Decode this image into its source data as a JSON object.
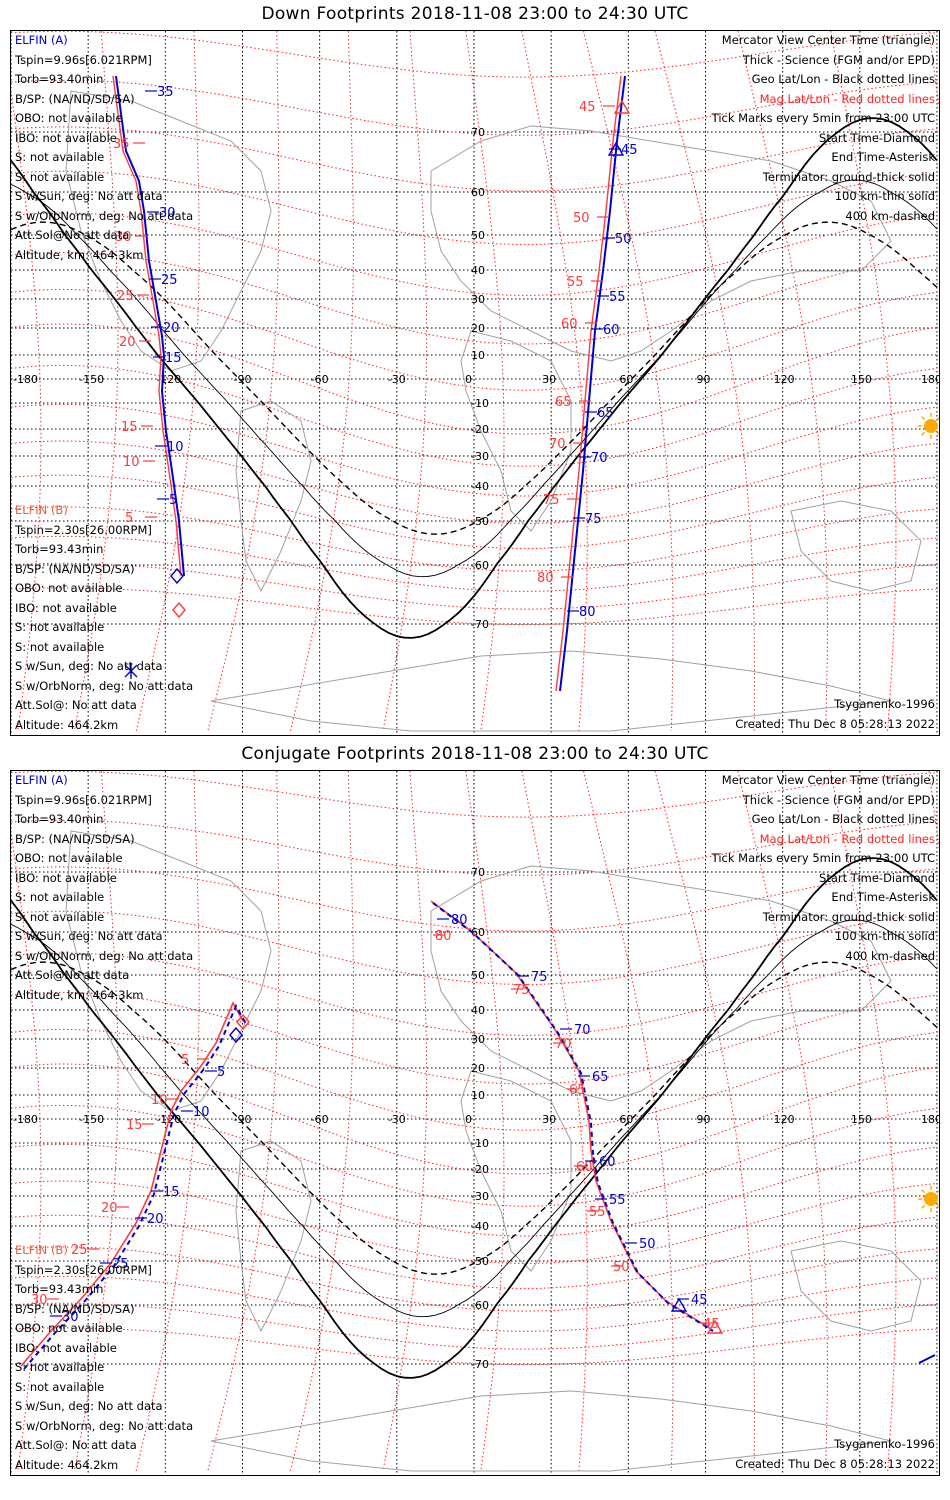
{
  "panels": [
    {
      "id": "down",
      "title": "Down Footprints 2018-11-08 23:00 to 24:30 UTC",
      "elfin_a": {
        "name": "ELFIN (A)",
        "lines": [
          "Tspin=9.96s[6.021RPM]",
          "Torb=93.40min",
          "B/SP: (NA/ND/SD/SA)",
          "OBO: not available",
          "IBO: not available",
          "S: not available",
          "S: not available",
          "S w/Sun, deg: No att data",
          "S w/OrbNorm, deg: No att data",
          "Att.Sol@No att data",
          "Altitude, km: 464.3km"
        ]
      },
      "elfin_b": {
        "name": "ELFIN (B)",
        "lines": [
          "Tspin=2.30s[26.00RPM]",
          "Torb=93.43min",
          "B/SP: (NA/ND/SD/SA)",
          "OBO: not available",
          "IBO: not available",
          "S: not available",
          "S: not available",
          "S w/Sun, deg: No att data",
          "S w/OrbNorm, deg: No att data",
          "Att.Sol@: No att data",
          "Altitude: 464.2km"
        ]
      },
      "legend": [
        "Mercator View Center Time (triangle)",
        "Thick - Science (FGM and/or EPD)",
        "Geo Lat/Lon - Black dotted lines",
        "Mag Lat/Lon - Red dotted lines",
        "Tick Marks every 5min from 23:00 UTC",
        "Start Time-Diamond",
        "End Time-Asterisk",
        "Terminator: ground-thick solid",
        "100 km-thin solid",
        "400 km-dashed"
      ],
      "model": "Tsyganenko-1996",
      "created": "Created: Thu Dec  8 05:28:13 2022",
      "lon_labels": [
        "-180",
        "-150",
        "-120",
        "-90",
        "-60",
        "-30",
        "0",
        "30",
        "60",
        "90",
        "120",
        "150",
        "180"
      ],
      "lat_labels": [
        "70",
        "60",
        "50",
        "40",
        "30",
        "20",
        "10",
        "-10",
        "-20",
        "-30",
        "-40",
        "-50",
        "-60",
        "-70"
      ],
      "tracks": {
        "a": [
          {
            "label": "25",
            "lon": -135,
            "lat": 28
          },
          {
            "label": "20",
            "lon": -128,
            "lat": 17
          },
          {
            "label": "15",
            "lon": -122,
            "lat": 7
          },
          {
            "label": "10",
            "lon": -125,
            "lat": -20
          },
          {
            "label": "5",
            "lon": -120,
            "lat": -36
          }
        ]
      }
    },
    {
      "id": "conjugate",
      "title": "Conjugate Footprints 2018-11-08 23:00 to 24:30 UTC",
      "elfin_a": {
        "name": "ELFIN (A)",
        "lines": [
          "Tspin=9.96s[6.021RPM]",
          "Torb=93.40min",
          "B/SP: (NA/ND/SD/SA)",
          "OBO: not available",
          "IBO: not available",
          "S: not available",
          "S: not available",
          "S w/Sun, deg: No att data",
          "S w/OrbNorm, deg: No att data",
          "Att.Sol@No att data",
          "Altitude, km: 464.3km"
        ]
      },
      "elfin_b": {
        "name": "ELFIN (B)",
        "lines": [
          "Tspin=2.30s[26.00RPM]",
          "Torb=93.43min",
          "B/SP: (NA/ND/SD/SA)",
          "OBO: not available",
          "IBO: not available",
          "S: not available",
          "S: not available",
          "S w/Sun, deg: No att data",
          "S w/OrbNorm, deg: No att data",
          "Att.Sol@: No att data",
          "Altitude: 464.2km"
        ]
      },
      "legend": [
        "Mercator View Center Time (triangle)",
        "Thick - Science (FGM and/or EPD)",
        "Geo Lat/Lon - Black dotted lines",
        "Mag Lat/Lon - Red dotted lines",
        "Tick Marks every 5min from 23:00 UTC",
        "Start Time-Diamond",
        "End Time-Asterisk",
        "Terminator: ground-thick solid",
        "100 km-thin solid",
        "400 km-dashed"
      ],
      "model": "Tsyganenko-1996",
      "created": "Created: Thu Dec  8 05:28:13 2022",
      "lon_labels": [
        "-180",
        "-150",
        "-120",
        "-90",
        "-60",
        "-30",
        "0",
        "30",
        "60",
        "90",
        "120",
        "150",
        "180"
      ],
      "lat_labels": [
        "70",
        "60",
        "50",
        "40",
        "30",
        "20",
        "10",
        "-10",
        "-20",
        "-30",
        "-40",
        "-50",
        "-60",
        "-70"
      ]
    }
  ],
  "ticks_down_a_left": [
    "35",
    "30",
    "25",
    "20",
    "15",
    "10",
    "5"
  ],
  "ticks_down_b_left": [
    "35",
    "30",
    "25",
    "20",
    "15",
    "10",
    "5"
  ],
  "ticks_down_a_right": [
    "45",
    "50",
    "55",
    "60",
    "65",
    "70",
    "75",
    "80"
  ],
  "ticks_down_b_right": [
    "45",
    "50",
    "55",
    "60",
    "65",
    "70",
    "75",
    "80"
  ],
  "ticks_conj_a_left": [
    "5",
    "10",
    "15",
    "20",
    "25",
    "30"
  ],
  "ticks_conj_b_left": [
    "5",
    "10",
    "15",
    "20",
    "25",
    "30"
  ],
  "ticks_conj_a_right": [
    "80",
    "75",
    "70",
    "65",
    "60",
    "55",
    "50",
    "45"
  ],
  "ticks_conj_b_right": [
    "80",
    "75",
    "70",
    "65",
    "60",
    "55",
    "50",
    "45"
  ],
  "colors": {
    "elfin_a": "#0000cc",
    "elfin_b": "#ff3a3a",
    "mag_grid": "#ff2222",
    "geo_grid": "#000000",
    "coast": "#a0a0a0",
    "sun": "#ffaa00"
  }
}
